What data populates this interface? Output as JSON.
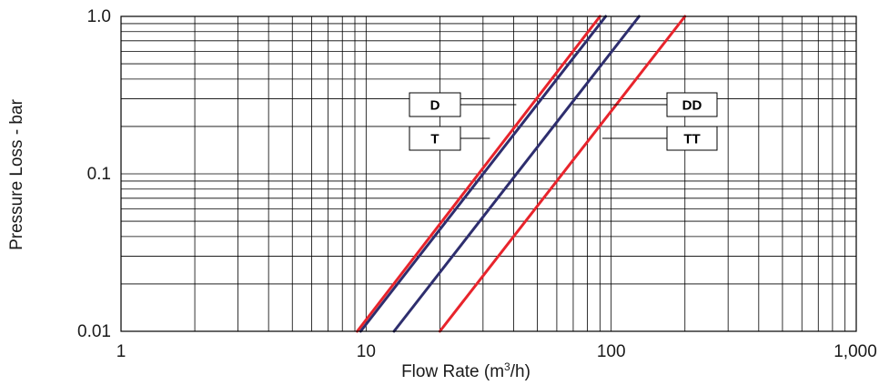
{
  "chart_data": {
    "type": "line",
    "title": "",
    "xlabel": "Flow Rate (m³/h)",
    "xlabel_main": "Flow Rate (m",
    "xlabel_sup": "3",
    "xlabel_tail": "/h)",
    "ylabel": "Pressure Loss - bar",
    "x_scale": "log",
    "y_scale": "log",
    "xlim": [
      1,
      1000
    ],
    "ylim": [
      0.01,
      1.0
    ],
    "x_ticks": [
      1,
      10,
      100,
      1000
    ],
    "x_tick_labels": [
      "1",
      "10",
      "100",
      "1,000"
    ],
    "y_ticks": [
      0.01,
      0.1,
      1.0
    ],
    "y_tick_labels": [
      "0.01",
      "0.1",
      "1.0"
    ],
    "grid": true,
    "legend_placement": "center, labels connected to lines by leader lines",
    "series": [
      {
        "name": "D",
        "color": "#e8242c",
        "x": [
          9.2,
          90
        ],
        "y": [
          0.01,
          1.0
        ]
      },
      {
        "name": "T",
        "color": "#2e2e6e",
        "x": [
          9.5,
          95
        ],
        "y": [
          0.01,
          1.0
        ]
      },
      {
        "name": "DD",
        "color": "#2e2e6e",
        "x": [
          13,
          130
        ],
        "y": [
          0.01,
          1.0
        ]
      },
      {
        "name": "TT",
        "color": "#e8242c",
        "x": [
          20,
          200
        ],
        "y": [
          0.01,
          1.0
        ]
      }
    ],
    "legend": [
      {
        "label": "D",
        "series": "D",
        "anchor": {
          "x": 41,
          "y": 0.265
        }
      },
      {
        "label": "T",
        "series": "T",
        "anchor": {
          "x": 32,
          "y": 0.125
        }
      },
      {
        "label": "DD",
        "series": "DD",
        "anchor": {
          "x": 70,
          "y": 0.265
        }
      },
      {
        "label": "TT",
        "series": "TT",
        "anchor": {
          "x": 92,
          "y": 0.125
        }
      }
    ]
  }
}
